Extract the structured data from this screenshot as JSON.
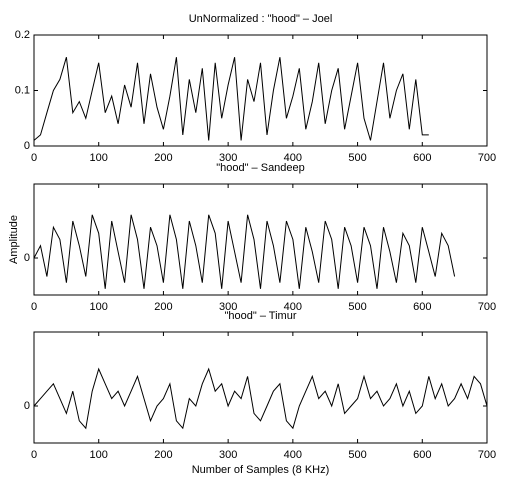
{
  "chart_data": [
    {
      "type": "line",
      "title": "UnNormalized : \"hood\" – Joel",
      "x": [
        0,
        10,
        20,
        30,
        40,
        50,
        60,
        70,
        80,
        90,
        100,
        110,
        120,
        130,
        140,
        150,
        160,
        170,
        180,
        190,
        200,
        210,
        220,
        230,
        240,
        250,
        260,
        270,
        280,
        290,
        300,
        310,
        320,
        330,
        340,
        350,
        360,
        370,
        380,
        390,
        400,
        410,
        420,
        430,
        440,
        450,
        460,
        470,
        480,
        490,
        500,
        510,
        520,
        530,
        540,
        550,
        560,
        570,
        580,
        590,
        600,
        610
      ],
      "series": [
        {
          "color": "#000000",
          "values": [
            0.01,
            0.02,
            0.06,
            0.1,
            0.12,
            0.16,
            0.06,
            0.08,
            0.05,
            0.1,
            0.15,
            0.06,
            0.09,
            0.04,
            0.11,
            0.07,
            0.15,
            0.04,
            0.13,
            0.07,
            0.03,
            0.09,
            0.16,
            0.02,
            0.12,
            0.06,
            0.14,
            0.01,
            0.15,
            0.05,
            0.11,
            0.16,
            0.01,
            0.12,
            0.08,
            0.15,
            0.02,
            0.1,
            0.16,
            0.05,
            0.09,
            0.14,
            0.03,
            0.08,
            0.15,
            0.04,
            0.1,
            0.14,
            0.03,
            0.09,
            0.15,
            0.05,
            0.01,
            0.08,
            0.15,
            0.05,
            0.1,
            0.13,
            0.03,
            0.12,
            0.02,
            0.02
          ]
        }
      ],
      "xlim": [
        0,
        700
      ],
      "xticks": [
        0,
        100,
        200,
        300,
        400,
        500,
        600,
        700
      ],
      "ylim": [
        0,
        0.2
      ],
      "yticks": [
        0,
        0.1,
        0.2
      ]
    },
    {
      "type": "line",
      "title": "\"hood\" – Sandeep",
      "y_label": "Amplitude",
      "x": [
        0,
        10,
        20,
        30,
        40,
        50,
        60,
        70,
        80,
        90,
        100,
        110,
        120,
        130,
        140,
        150,
        160,
        170,
        180,
        190,
        200,
        210,
        220,
        230,
        240,
        250,
        260,
        270,
        280,
        290,
        300,
        310,
        320,
        330,
        340,
        350,
        360,
        370,
        380,
        390,
        400,
        410,
        420,
        430,
        440,
        450,
        460,
        470,
        480,
        490,
        500,
        510,
        520,
        530,
        540,
        550,
        560,
        570,
        580,
        590,
        600,
        610,
        620,
        630,
        640,
        650
      ],
      "series": [
        {
          "color": "#000000",
          "values": [
            0.0,
            0.02,
            -0.03,
            0.05,
            0.03,
            -0.04,
            0.06,
            0.02,
            -0.03,
            0.07,
            0.04,
            -0.05,
            0.06,
            0.01,
            -0.04,
            0.07,
            0.03,
            -0.05,
            0.05,
            0.02,
            -0.04,
            0.07,
            0.03,
            -0.05,
            0.06,
            0.02,
            -0.04,
            0.07,
            0.04,
            -0.05,
            0.06,
            0.01,
            -0.04,
            0.07,
            0.03,
            -0.05,
            0.06,
            0.02,
            -0.04,
            0.06,
            0.03,
            -0.05,
            0.05,
            0.01,
            -0.04,
            0.06,
            0.03,
            -0.05,
            0.05,
            0.02,
            -0.04,
            0.05,
            0.02,
            -0.05,
            0.05,
            0.01,
            -0.04,
            0.04,
            0.02,
            -0.04,
            0.05,
            0.01,
            -0.03,
            0.04,
            0.02,
            -0.03
          ]
        }
      ],
      "xlim": [
        0,
        700
      ],
      "xticks": [
        0,
        100,
        200,
        300,
        400,
        500,
        600,
        700
      ],
      "ylim": [
        -0.06,
        0.12
      ],
      "yticks": [
        0
      ]
    },
    {
      "type": "line",
      "title": "\"hood\" – Timur",
      "x_label": "Number of Samples (8 KHz)",
      "x": [
        0,
        10,
        20,
        30,
        40,
        50,
        60,
        70,
        80,
        90,
        100,
        110,
        120,
        130,
        140,
        150,
        160,
        170,
        180,
        190,
        200,
        210,
        220,
        230,
        240,
        250,
        260,
        270,
        280,
        290,
        300,
        310,
        320,
        330,
        340,
        350,
        360,
        370,
        380,
        390,
        400,
        410,
        420,
        430,
        440,
        450,
        460,
        470,
        480,
        490,
        500,
        510,
        520,
        530,
        540,
        550,
        560,
        570,
        580,
        590,
        600,
        610,
        620,
        630,
        640,
        650,
        660,
        670,
        680,
        690,
        700
      ],
      "series": [
        {
          "color": "#000000",
          "values": [
            0.0,
            0.01,
            0.02,
            0.03,
            0.01,
            -0.01,
            0.02,
            -0.02,
            -0.03,
            0.02,
            0.05,
            0.03,
            0.01,
            0.02,
            0.0,
            0.02,
            0.04,
            0.01,
            -0.02,
            0.0,
            0.01,
            0.03,
            -0.02,
            -0.03,
            0.01,
            0.0,
            0.03,
            0.05,
            0.02,
            0.03,
            0.0,
            0.02,
            0.01,
            0.04,
            -0.01,
            -0.02,
            0.0,
            0.02,
            0.03,
            -0.02,
            -0.03,
            0.0,
            0.02,
            0.04,
            0.01,
            0.02,
            0.0,
            0.03,
            -0.01,
            0.0,
            0.01,
            0.04,
            0.01,
            0.02,
            0.0,
            0.01,
            0.03,
            0.0,
            0.02,
            -0.01,
            0.0,
            0.04,
            0.01,
            0.03,
            0.0,
            0.01,
            0.03,
            0.01,
            0.04,
            0.03,
            0.0
          ]
        }
      ],
      "xlim": [
        0,
        700
      ],
      "xticks": [
        0,
        100,
        200,
        300,
        400,
        500,
        600,
        700
      ],
      "ylim": [
        -0.05,
        0.1
      ],
      "yticks": [
        0
      ]
    }
  ]
}
